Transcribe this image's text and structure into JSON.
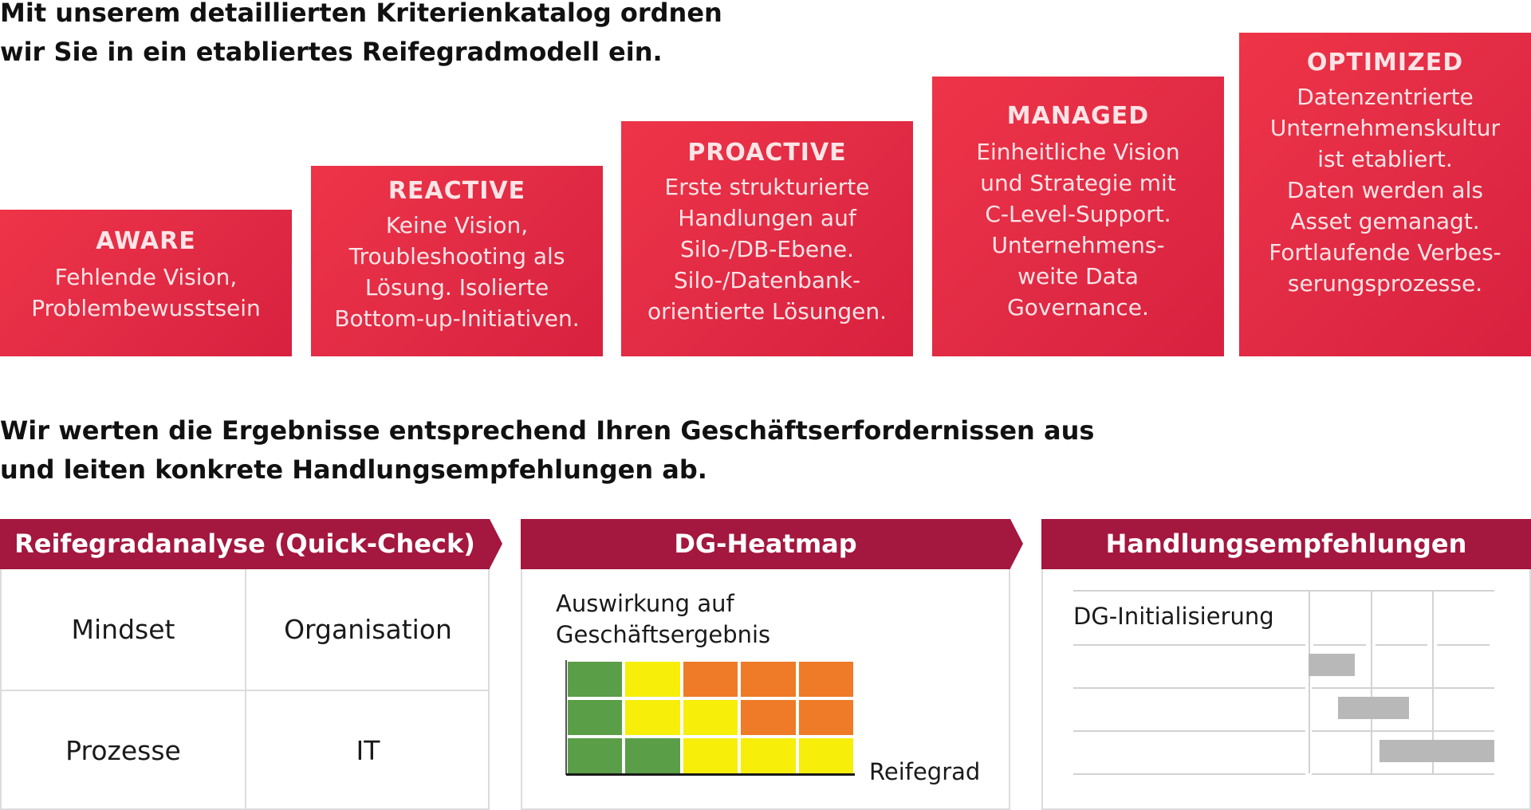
{
  "intro_heading": [
    "Mit unserem detaillierten Kriterienkatalog ordnen",
    "wir Sie in ein etabliertes Reifegradmodell ein."
  ],
  "stages": [
    {
      "title": "AWARE",
      "lines": [
        "Fehlende Vision,",
        "Problembewusstsein"
      ]
    },
    {
      "title": "REACTIVE",
      "lines": [
        "Keine Vision,",
        "Troubleshooting als",
        "Lösung. Isolierte",
        "Bottom-up-Initiativen."
      ]
    },
    {
      "title": "PROACTIVE",
      "lines": [
        "Erste strukturierte",
        "Handlungen auf",
        "Silo-/DB-Ebene.",
        "Silo-/Datenbank-",
        "orientierte Lösungen."
      ]
    },
    {
      "title": "MANAGED",
      "lines": [
        "Einheitliche Vision",
        "und Strategie mit",
        "C-Level-Support.",
        "Unternehmens-",
        "weite Data",
        "Governance."
      ]
    },
    {
      "title": "OPTIMIZED",
      "lines": [
        "Datenzentrierte",
        "Unternehmenskultur",
        "ist etabliert.",
        "Daten werden als",
        "Asset gemanagt.",
        "Fortlaufende Verbes-",
        "serungsprozesse."
      ]
    }
  ],
  "results_heading": [
    "Wir werten die Ergebnisse entsprechend Ihren Geschäftserfordernissen aus",
    "und leiten konkrete Handlungsempfehlungen ab."
  ],
  "panels": {
    "quick_check": {
      "title": "Reifegradanalyse (Quick-Check)",
      "cells": [
        "Mindset",
        "Organisation",
        "Prozesse",
        "IT"
      ]
    },
    "heatmap": {
      "title": "DG-Heatmap",
      "y_label": [
        "Auswirkung auf",
        "Geschäftsergebnis"
      ],
      "x_label": "Reifegrad",
      "colors": {
        "green": "#5a9e48",
        "yellow": "#f7ee0a",
        "orange": "#ef7a28"
      },
      "grid": [
        [
          "green",
          "yellow",
          "orange",
          "orange",
          "orange"
        ],
        [
          "green",
          "yellow",
          "yellow",
          "orange",
          "orange"
        ],
        [
          "green",
          "green",
          "yellow",
          "yellow",
          "yellow"
        ]
      ]
    },
    "recommendations": {
      "title": "Handlungsempfehlungen",
      "row_label": "DG-Initialisierung",
      "bars": [
        {
          "row": 1,
          "start": 0.0,
          "end": 0.25
        },
        {
          "row": 2,
          "start": 0.16,
          "end": 0.54
        },
        {
          "row": 3,
          "start": 0.38,
          "end": 1.0
        }
      ]
    }
  },
  "accent_colors": {
    "stage_red": "#e22b45",
    "panel_header": "#a4173f"
  }
}
